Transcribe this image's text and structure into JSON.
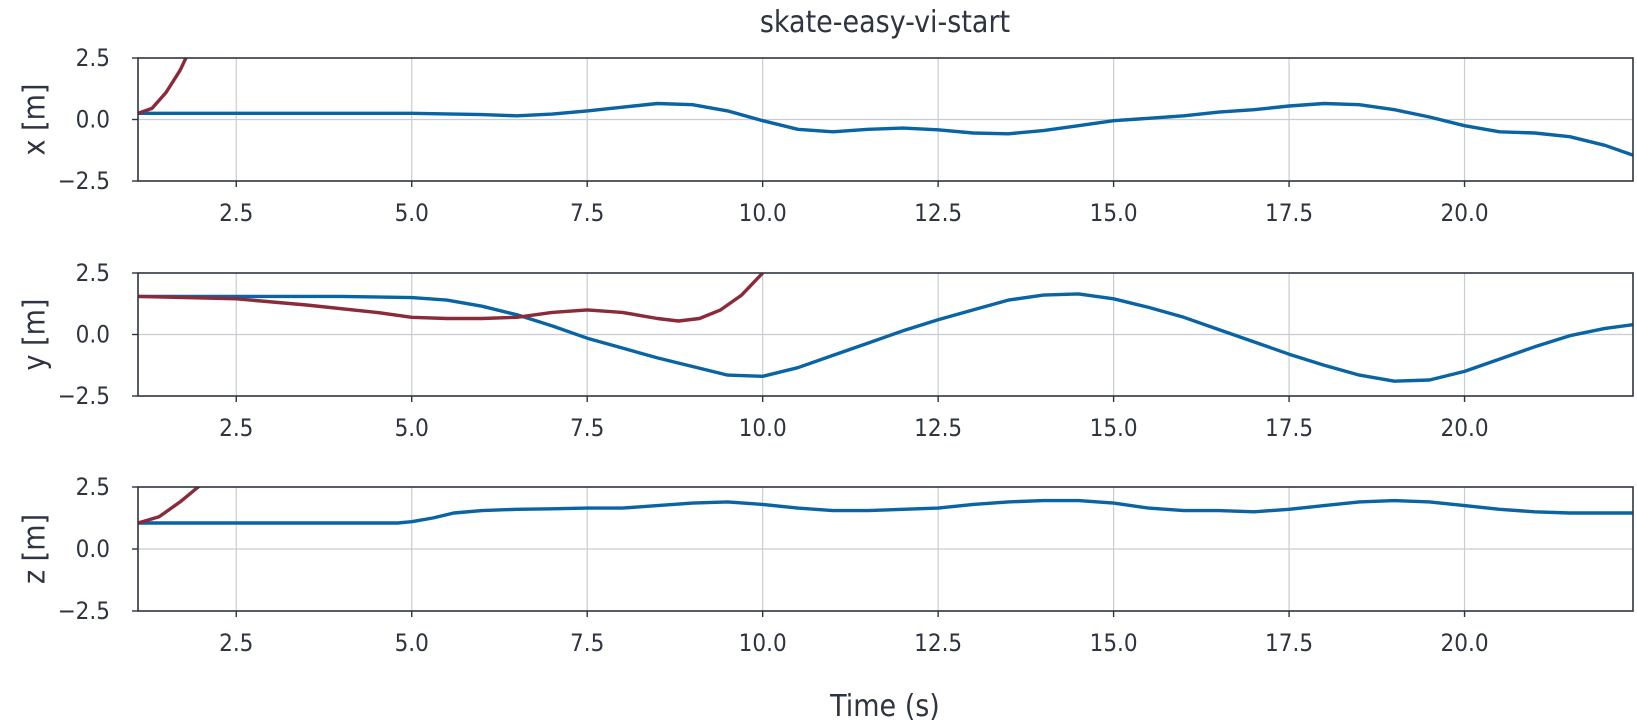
{
  "chart_data": {
    "type": "line",
    "title": "skate-easy-vi-start",
    "xlabel": "Time (s)",
    "xlim": [
      1.1,
      22.4
    ],
    "xticks": [
      2.5,
      5.0,
      7.5,
      10.0,
      12.5,
      15.0,
      17.5,
      20.0
    ],
    "xtick_labels": [
      "2.5",
      "5.0",
      "7.5",
      "10.0",
      "12.5",
      "15.0",
      "17.5",
      "20.0"
    ],
    "ylim": [
      -2.5,
      2.5
    ],
    "yticks": [
      2.5,
      0.0,
      -2.5
    ],
    "ytick_labels": [
      "2.5",
      "0.0",
      "−2.5"
    ],
    "grid": true,
    "colors": {
      "blue": "#0a64a4",
      "red": "#8b2a3a",
      "axis": "#2e3440",
      "grid": "#c9ccd1"
    },
    "subplots": [
      {
        "ylabel": "x [m]",
        "series": [
          {
            "color": "blue",
            "x": [
              1.1,
              2.5,
              4.0,
              5.0,
              6.0,
              6.5,
              7.0,
              7.5,
              8.0,
              8.5,
              9.0,
              9.5,
              10.0,
              10.5,
              11.0,
              11.5,
              12.0,
              12.5,
              13.0,
              13.5,
              14.0,
              14.5,
              15.0,
              15.5,
              16.0,
              16.5,
              17.0,
              17.5,
              18.0,
              18.5,
              19.0,
              19.5,
              20.0,
              20.5,
              21.0,
              21.5,
              22.0,
              22.4
            ],
            "y": [
              0.25,
              0.25,
              0.25,
              0.25,
              0.2,
              0.15,
              0.22,
              0.35,
              0.5,
              0.65,
              0.6,
              0.35,
              -0.05,
              -0.4,
              -0.5,
              -0.4,
              -0.35,
              -0.42,
              -0.55,
              -0.58,
              -0.45,
              -0.25,
              -0.05,
              0.05,
              0.15,
              0.3,
              0.4,
              0.55,
              0.65,
              0.6,
              0.4,
              0.1,
              -0.25,
              -0.5,
              -0.55,
              -0.7,
              -1.05,
              -1.45
            ]
          },
          {
            "color": "red",
            "x": [
              1.1,
              1.3,
              1.5,
              1.7,
              1.8
            ],
            "y": [
              0.25,
              0.45,
              1.1,
              2.0,
              2.6
            ]
          }
        ]
      },
      {
        "ylabel": "y [m]",
        "series": [
          {
            "color": "blue",
            "x": [
              1.1,
              2.5,
              4.0,
              5.0,
              5.5,
              6.0,
              6.5,
              7.0,
              7.5,
              8.0,
              8.5,
              9.0,
              9.5,
              10.0,
              10.5,
              11.0,
              11.5,
              12.0,
              12.5,
              13.0,
              13.5,
              14.0,
              14.5,
              15.0,
              15.5,
              16.0,
              16.5,
              17.0,
              17.5,
              18.0,
              18.5,
              19.0,
              19.5,
              20.0,
              20.5,
              21.0,
              21.5,
              22.0,
              22.4
            ],
            "y": [
              1.55,
              1.55,
              1.55,
              1.5,
              1.4,
              1.15,
              0.8,
              0.35,
              -0.15,
              -0.55,
              -0.95,
              -1.3,
              -1.65,
              -1.7,
              -1.35,
              -0.85,
              -0.35,
              0.15,
              0.6,
              1.0,
              1.4,
              1.6,
              1.65,
              1.45,
              1.1,
              0.7,
              0.2,
              -0.3,
              -0.8,
              -1.25,
              -1.65,
              -1.9,
              -1.85,
              -1.5,
              -1.0,
              -0.5,
              -0.05,
              0.25,
              0.4
            ]
          },
          {
            "color": "red",
            "x": [
              1.1,
              2.5,
              3.5,
              4.5,
              5.0,
              5.5,
              6.0,
              6.5,
              7.0,
              7.5,
              8.0,
              8.5,
              8.8,
              9.1,
              9.4,
              9.7,
              10.0
            ],
            "y": [
              1.55,
              1.45,
              1.2,
              0.9,
              0.7,
              0.65,
              0.65,
              0.7,
              0.9,
              1.0,
              0.9,
              0.65,
              0.55,
              0.65,
              1.0,
              1.6,
              2.5
            ]
          }
        ]
      },
      {
        "ylabel": "z [m]",
        "series": [
          {
            "color": "blue",
            "x": [
              1.1,
              2.5,
              4.0,
              4.8,
              5.0,
              5.3,
              5.6,
              6.0,
              6.5,
              7.0,
              7.5,
              8.0,
              8.5,
              9.0,
              9.5,
              10.0,
              10.5,
              11.0,
              11.5,
              12.0,
              12.5,
              13.0,
              13.5,
              14.0,
              14.5,
              15.0,
              15.5,
              16.0,
              16.5,
              17.0,
              17.5,
              18.0,
              18.5,
              19.0,
              19.5,
              20.0,
              20.5,
              21.0,
              21.5,
              22.0,
              22.4
            ],
            "y": [
              1.05,
              1.05,
              1.05,
              1.05,
              1.1,
              1.25,
              1.45,
              1.55,
              1.6,
              1.62,
              1.65,
              1.65,
              1.75,
              1.85,
              1.9,
              1.8,
              1.65,
              1.55,
              1.55,
              1.6,
              1.65,
              1.8,
              1.9,
              1.95,
              1.95,
              1.85,
              1.65,
              1.55,
              1.55,
              1.5,
              1.6,
              1.75,
              1.9,
              1.95,
              1.9,
              1.75,
              1.6,
              1.5,
              1.45,
              1.45,
              1.45
            ]
          },
          {
            "color": "red",
            "x": [
              1.1,
              1.4,
              1.7,
              2.0
            ],
            "y": [
              1.05,
              1.3,
              1.9,
              2.6
            ]
          }
        ]
      }
    ]
  }
}
